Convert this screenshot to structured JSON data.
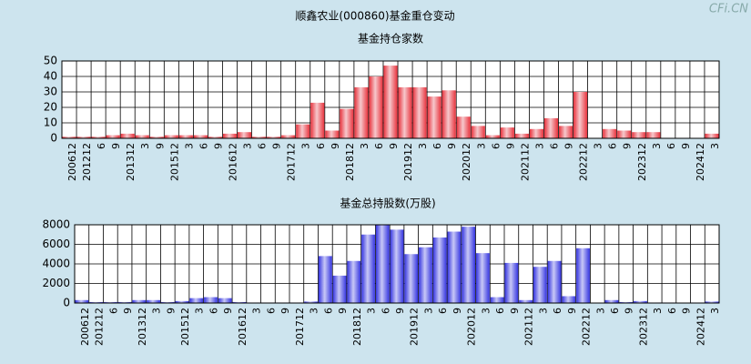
{
  "title": "顺鑫农业(000860)基金重仓变动",
  "watermark": "CFi.CN",
  "chart_data": [
    {
      "type": "bar",
      "title": "基金持仓家数",
      "color": "#e8323c",
      "grid": true,
      "categories": [
        "200612",
        "201212",
        "6",
        "9",
        "201312",
        "3",
        "9",
        "201512",
        "3",
        "6",
        "9",
        "201612",
        "3",
        "6",
        "9",
        "201712",
        "3",
        "6",
        "9",
        "201812",
        "3",
        "6",
        "9",
        "201912",
        "3",
        "6",
        "9",
        "202012",
        "3",
        "6",
        "9",
        "202112",
        "3",
        "6",
        "9",
        "202212",
        "3",
        "6",
        "9",
        "202312",
        "3",
        "6",
        "9",
        "202412",
        "3"
      ],
      "values": [
        1,
        1,
        1,
        2,
        3,
        2,
        1,
        2,
        2,
        2,
        1,
        3,
        4,
        1,
        1,
        2,
        9,
        23,
        5,
        19,
        33,
        40,
        47,
        33,
        33,
        27,
        31,
        14,
        8,
        2,
        7,
        3,
        6,
        13,
        8,
        30,
        0,
        6,
        5,
        4,
        4,
        0,
        0,
        0,
        3
      ],
      "ylim": [
        0,
        50
      ],
      "yticks": [
        0,
        10,
        20,
        30,
        40,
        50
      ]
    },
    {
      "type": "bar",
      "title": "基金总持股数(万股)",
      "color": "#3434e0",
      "grid": true,
      "categories": [
        "200612",
        "201212",
        "6",
        "9",
        "201312",
        "3",
        "9",
        "201512",
        "3",
        "6",
        "9",
        "201612",
        "3",
        "6",
        "9",
        "201712",
        "3",
        "6",
        "9",
        "201812",
        "3",
        "6",
        "9",
        "201912",
        "3",
        "6",
        "9",
        "202012",
        "3",
        "6",
        "9",
        "202112",
        "3",
        "6",
        "9",
        "202212",
        "3",
        "6",
        "9",
        "202312",
        "3",
        "6",
        "9",
        "202412",
        "3"
      ],
      "values": [
        300,
        100,
        100,
        100,
        300,
        300,
        100,
        200,
        500,
        600,
        500,
        100,
        50,
        50,
        50,
        50,
        150,
        4800,
        2800,
        4300,
        7000,
        8000,
        7500,
        5000,
        5700,
        6700,
        7300,
        7800,
        5100,
        600,
        4100,
        300,
        3700,
        4300,
        700,
        5600,
        0,
        300,
        100,
        200,
        50,
        50,
        0,
        50,
        150
      ],
      "ylim": [
        0,
        8000
      ],
      "yticks": [
        0,
        2000,
        4000,
        6000,
        8000
      ]
    }
  ]
}
